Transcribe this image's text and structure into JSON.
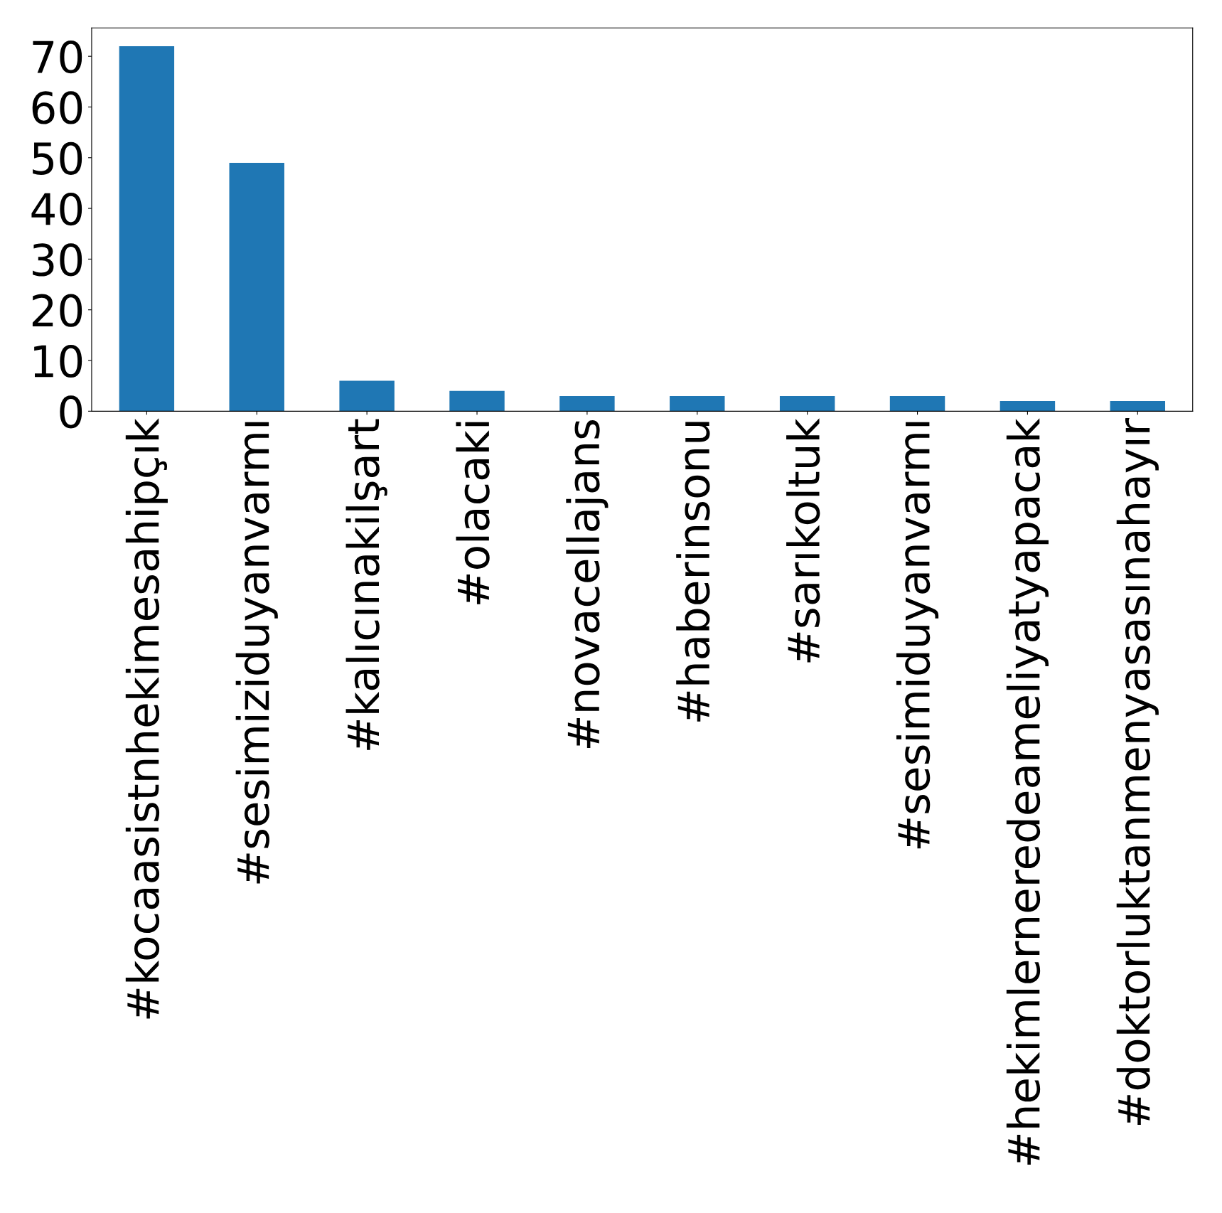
{
  "chart_data": {
    "type": "bar",
    "categories": [
      "#kocaasistnhekimesahipçık",
      "#sesimiziduyanvarmı",
      "#kalıcınakilşart",
      "#olacaki",
      "#novacellajans",
      "#haberinsonu",
      "#sarıkoltuk",
      "#sesimiduyanvarmı",
      "#hekimlerneredeameliyatyapacak",
      "#doktorluktanmenyasasınahayır"
    ],
    "values": [
      72,
      49,
      6,
      4,
      3,
      3,
      3,
      3,
      2,
      2
    ],
    "color": "#1f77b4",
    "ylim": [
      0,
      75.6
    ],
    "yticks": [
      0,
      10,
      20,
      30,
      40,
      50,
      60,
      70
    ],
    "grid": false,
    "legend": false
  }
}
